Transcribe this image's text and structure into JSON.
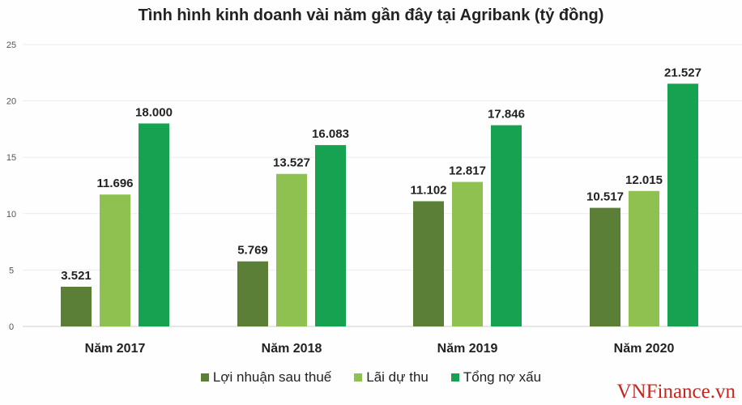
{
  "chart_data": {
    "type": "bar",
    "title": "Tình hình kinh doanh vài năm gần đây tại Agribank (tỷ đồng)",
    "categories": [
      "Năm 2017",
      "Năm 2018",
      "Năm 2019",
      "Năm 2020"
    ],
    "series": [
      {
        "name": "Lợi nhuận sau thuế",
        "color": "#5b7f36",
        "values": [
          3.521,
          5.769,
          11.102,
          10.517
        ],
        "labels": [
          "3.521",
          "5.769",
          "11.102",
          "10.517"
        ]
      },
      {
        "name": "Lãi dự thu",
        "color": "#8fc151",
        "values": [
          11.696,
          13.527,
          12.817,
          12.015
        ],
        "labels": [
          "11.696",
          "13.527",
          "12.817",
          "12.015"
        ]
      },
      {
        "name": "Tổng nợ xấu",
        "color": "#17a252",
        "values": [
          18.0,
          16.083,
          17.846,
          21.527
        ],
        "labels": [
          "18.000",
          "16.083",
          "17.846",
          "21.527"
        ]
      }
    ],
    "ylim": [
      0,
      25
    ],
    "yticks": [
      "0",
      "5",
      "10",
      "15",
      "20",
      "25"
    ],
    "grid": true,
    "legend": "bottom"
  },
  "watermark": "VNFinance.vn"
}
